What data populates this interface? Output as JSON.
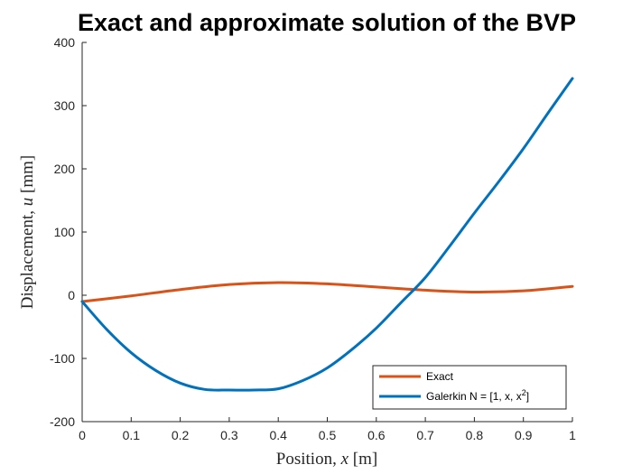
{
  "chart_data": {
    "type": "line",
    "title": "Exact and approximate solution of the BVP",
    "xlabel_prefix": "Position, ",
    "xlabel_var": "x",
    "xlabel_unit": " [m]",
    "ylabel_prefix": "Displacement, ",
    "ylabel_var": "u",
    "ylabel_unit": " [mm]",
    "xlim": [
      0,
      1
    ],
    "ylim": [
      -200,
      400
    ],
    "xticks": [
      0,
      0.1,
      0.2,
      0.3,
      0.4,
      0.5,
      0.6,
      0.7,
      0.8,
      0.9,
      1
    ],
    "xtick_labels": [
      "0",
      "0.1",
      "0.2",
      "0.3",
      "0.4",
      "0.5",
      "0.6",
      "0.7",
      "0.8",
      "0.9",
      "1"
    ],
    "yticks": [
      -200,
      -100,
      0,
      100,
      200,
      300,
      400
    ],
    "ytick_labels": [
      "-200",
      "-100",
      "0",
      "100",
      "200",
      "300",
      "400"
    ],
    "grid": false,
    "legend_position": "bottom-right",
    "series": [
      {
        "name": "Exact",
        "color": "#D95319",
        "x": [
          0,
          0.1,
          0.2,
          0.3,
          0.4,
          0.5,
          0.6,
          0.7,
          0.8,
          0.9,
          1
        ],
        "y": [
          -10,
          -1,
          9,
          17,
          20,
          18,
          13,
          8,
          5,
          7,
          14
        ]
      },
      {
        "name": "Galerkin N = [1, x, x",
        "name_sup": "2",
        "name_suffix": "]",
        "color": "#0072BD",
        "x": [
          0,
          0.05,
          0.1,
          0.15,
          0.2,
          0.25,
          0.3,
          0.35,
          0.4,
          0.45,
          0.5,
          0.55,
          0.6,
          0.65,
          0.7,
          0.75,
          0.8,
          0.85,
          0.9,
          0.95,
          1
        ],
        "y": [
          -10,
          -54,
          -91,
          -119,
          -139,
          -149,
          -150,
          -150,
          -148,
          -135,
          -115,
          -86,
          -52,
          -12,
          28,
          78,
          130,
          180,
          232,
          288,
          343
        ]
      }
    ]
  }
}
